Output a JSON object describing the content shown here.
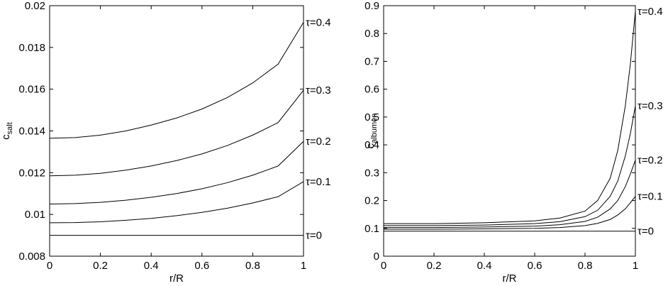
{
  "chart_data": [
    {
      "type": "line",
      "xlabel": "r/R",
      "ylabel": {
        "main": "c",
        "sub": "salt"
      },
      "xlim": [
        0,
        1
      ],
      "ylim": [
        0.008,
        0.02
      ],
      "grid": false,
      "xticks": [
        0,
        0.2,
        0.4,
        0.6,
        0.8,
        1
      ],
      "xtick_labels": [
        "0",
        "0.2",
        "0.4",
        "0.6",
        "0.8",
        "1"
      ],
      "yticks": [
        0.008,
        0.01,
        0.012,
        0.014,
        0.016,
        0.018,
        0.02
      ],
      "ytick_labels": [
        "0.008",
        "0.01",
        "0.012",
        "0.014",
        "0.016",
        "0.018",
        "0.02"
      ],
      "x": [
        0,
        0.1,
        0.2,
        0.3,
        0.4,
        0.5,
        0.6,
        0.7,
        0.8,
        0.9,
        1.0
      ],
      "series": [
        {
          "label": "τ=0",
          "values": [
            0.009,
            0.009,
            0.009,
            0.009,
            0.009,
            0.009,
            0.009,
            0.009,
            0.009,
            0.009,
            0.009
          ]
        },
        {
          "label": "τ=0.1",
          "values": [
            0.0096,
            0.00961,
            0.00965,
            0.00972,
            0.00981,
            0.00994,
            0.0101,
            0.0103,
            0.01055,
            0.01085,
            0.01157
          ]
        },
        {
          "label": "τ=0.2",
          "values": [
            0.0105,
            0.01052,
            0.01058,
            0.01068,
            0.01082,
            0.011,
            0.01123,
            0.01152,
            0.01188,
            0.01232,
            0.0135
          ]
        },
        {
          "label": "τ=0.3",
          "values": [
            0.01185,
            0.01188,
            0.01197,
            0.01212,
            0.01232,
            0.01258,
            0.0129,
            0.0133,
            0.0138,
            0.0144,
            0.01595
          ]
        },
        {
          "label": "τ=0.4",
          "values": [
            0.01365,
            0.01368,
            0.0138,
            0.014,
            0.01428,
            0.01462,
            0.01505,
            0.0156,
            0.0163,
            0.0172,
            0.0192
          ]
        }
      ]
    },
    {
      "type": "line",
      "xlabel": "r/R",
      "ylabel": {
        "main": "c",
        "sub": "albumen"
      },
      "xlim": [
        0,
        1
      ],
      "ylim": [
        0,
        0.9
      ],
      "grid": false,
      "xticks": [
        0,
        0.2,
        0.4,
        0.6,
        0.8,
        1
      ],
      "xtick_labels": [
        "0",
        "0.2",
        "0.4",
        "0.6",
        "0.8",
        "1"
      ],
      "yticks": [
        0,
        0.1,
        0.2,
        0.3,
        0.4,
        0.5,
        0.6,
        0.7,
        0.8,
        0.9
      ],
      "ytick_labels": [
        "0",
        "0.1",
        "0.2",
        "0.3",
        "0.4",
        "0.5",
        "0.6",
        "0.7",
        "0.8",
        "0.9"
      ],
      "x": [
        0,
        0.2,
        0.4,
        0.6,
        0.7,
        0.8,
        0.85,
        0.9,
        0.93,
        0.96,
        0.98,
        1.0
      ],
      "series": [
        {
          "label": "τ=0",
          "values": [
            0.09,
            0.09,
            0.09,
            0.09,
            0.09,
            0.09,
            0.09,
            0.09,
            0.09,
            0.09,
            0.09,
            0.09
          ]
        },
        {
          "label": "τ=0.1",
          "values": [
            0.097,
            0.097,
            0.098,
            0.1,
            0.103,
            0.11,
            0.118,
            0.132,
            0.148,
            0.17,
            0.192,
            0.215
          ]
        },
        {
          "label": "τ=0.2",
          "values": [
            0.103,
            0.103,
            0.105,
            0.108,
            0.113,
            0.125,
            0.14,
            0.17,
            0.2,
            0.25,
            0.295,
            0.345
          ]
        },
        {
          "label": "τ=0.3",
          "values": [
            0.11,
            0.11,
            0.112,
            0.117,
            0.124,
            0.142,
            0.165,
            0.215,
            0.27,
            0.36,
            0.44,
            0.54
          ]
        },
        {
          "label": "τ=0.4",
          "values": [
            0.117,
            0.117,
            0.12,
            0.127,
            0.137,
            0.162,
            0.2,
            0.28,
            0.38,
            0.54,
            0.69,
            0.88
          ]
        }
      ]
    }
  ]
}
